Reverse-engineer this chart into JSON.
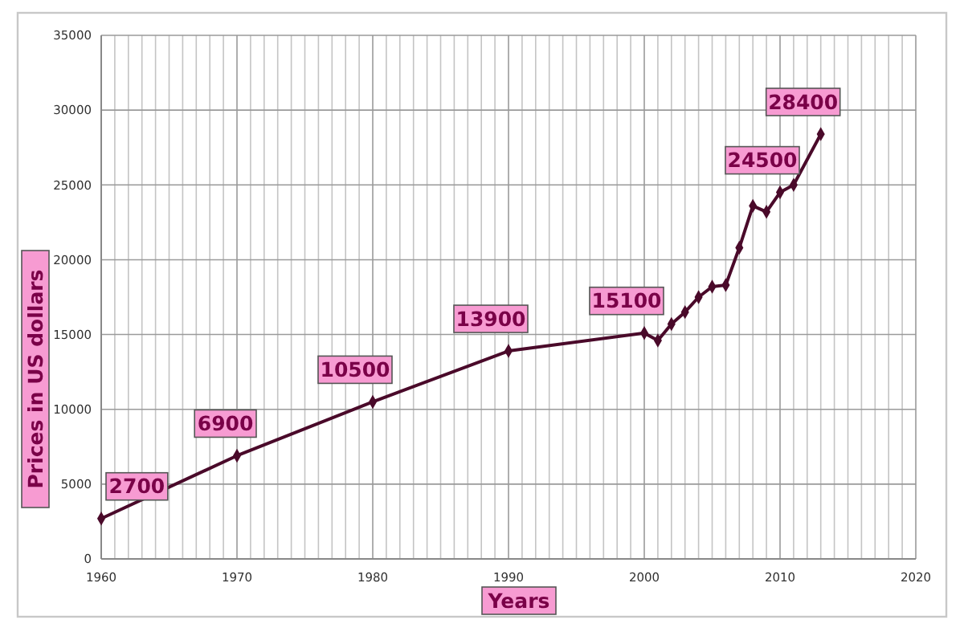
{
  "chart_data": {
    "type": "line",
    "xlabel": "Years",
    "ylabel": "Prices in US dollars",
    "x": [
      1960,
      1970,
      1980,
      1990,
      2000,
      2001,
      2002,
      2003,
      2004,
      2005,
      2006,
      2007,
      2008,
      2009,
      2010,
      2011,
      2013
    ],
    "series": [
      {
        "color": "#4a0a2a",
        "values": [
          2700,
          6900,
          10500,
          13900,
          15100,
          14600,
          15700,
          16500,
          17500,
          18200,
          18300,
          20800,
          23600,
          23200,
          24500,
          25000,
          28400
        ],
        "value_labels": [
          "2700",
          "6900",
          "10500",
          "13900",
          "15100",
          null,
          null,
          null,
          null,
          null,
          null,
          null,
          null,
          null,
          "24500",
          null,
          "28400"
        ]
      }
    ],
    "xlim": [
      1960,
      2020
    ],
    "xticks": [
      1960,
      {
        "value": 1961,
        "label": null
      },
      {
        "value": 1962,
        "label": null
      },
      {
        "value": 1963,
        "label": null
      },
      {
        "value": 1964,
        "label": null
      },
      {
        "value": 1965,
        "label": null
      },
      {
        "value": 1966,
        "label": null
      },
      {
        "value": 1967,
        "label": null
      },
      {
        "value": 1968,
        "label": null
      },
      {
        "value": 1969,
        "label": null
      },
      1970,
      {
        "value": 1971,
        "label": null
      },
      {
        "value": 1972,
        "label": null
      },
      {
        "value": 1973,
        "label": null
      },
      {
        "value": 1974,
        "label": null
      },
      {
        "value": 1975,
        "label": null
      },
      {
        "value": 1976,
        "label": null
      },
      {
        "value": 1977,
        "label": null
      },
      {
        "value": 1978,
        "label": null
      },
      {
        "value": 1979,
        "label": null
      },
      1980,
      {
        "value": 1981,
        "label": null
      },
      {
        "value": 1982,
        "label": null
      },
      {
        "value": 1983,
        "label": null
      },
      {
        "value": 1984,
        "label": null
      },
      {
        "value": 1985,
        "label": null
      },
      {
        "value": 1986,
        "label": null
      },
      {
        "value": 1987,
        "label": null
      },
      {
        "value": 1988,
        "label": null
      },
      {
        "value": 1989,
        "label": null
      },
      1990,
      {
        "value": 1991,
        "label": null
      },
      {
        "value": 1992,
        "label": null
      },
      {
        "value": 1993,
        "label": null
      },
      {
        "value": 1994,
        "label": null
      },
      {
        "value": 1995,
        "label": null
      },
      {
        "value": 1996,
        "label": null
      },
      {
        "value": 1997,
        "label": null
      },
      {
        "value": 1998,
        "label": null
      },
      {
        "value": 1999,
        "label": null
      },
      2000,
      {
        "value": 2001,
        "label": null
      },
      {
        "value": 2002,
        "label": null
      },
      {
        "value": 2003,
        "label": null
      },
      {
        "value": 2004,
        "label": null
      },
      {
        "value": 2005,
        "label": null
      },
      {
        "value": 2006,
        "label": null
      },
      {
        "value": 2007,
        "label": null
      },
      {
        "value": 2008,
        "label": null
      },
      {
        "value": 2009,
        "label": null
      },
      2010,
      {
        "value": 2011,
        "label": null
      },
      {
        "value": 2012,
        "label": null
      },
      {
        "value": 2013,
        "label": null
      },
      {
        "value": 2014,
        "label": null
      },
      {
        "value": 2015,
        "label": null
      },
      {
        "value": 2016,
        "label": null
      },
      {
        "value": 2017,
        "label": null
      },
      {
        "value": 2018,
        "label": null
      },
      {
        "value": 2019,
        "label": null
      },
      2020
    ],
    "ylim": [
      0,
      35000
    ],
    "yticks": [
      0,
      5000,
      10000,
      15000,
      20000,
      25000,
      30000,
      35000
    ],
    "grid": true,
    "marker": "diamond",
    "line_style": "solid"
  }
}
